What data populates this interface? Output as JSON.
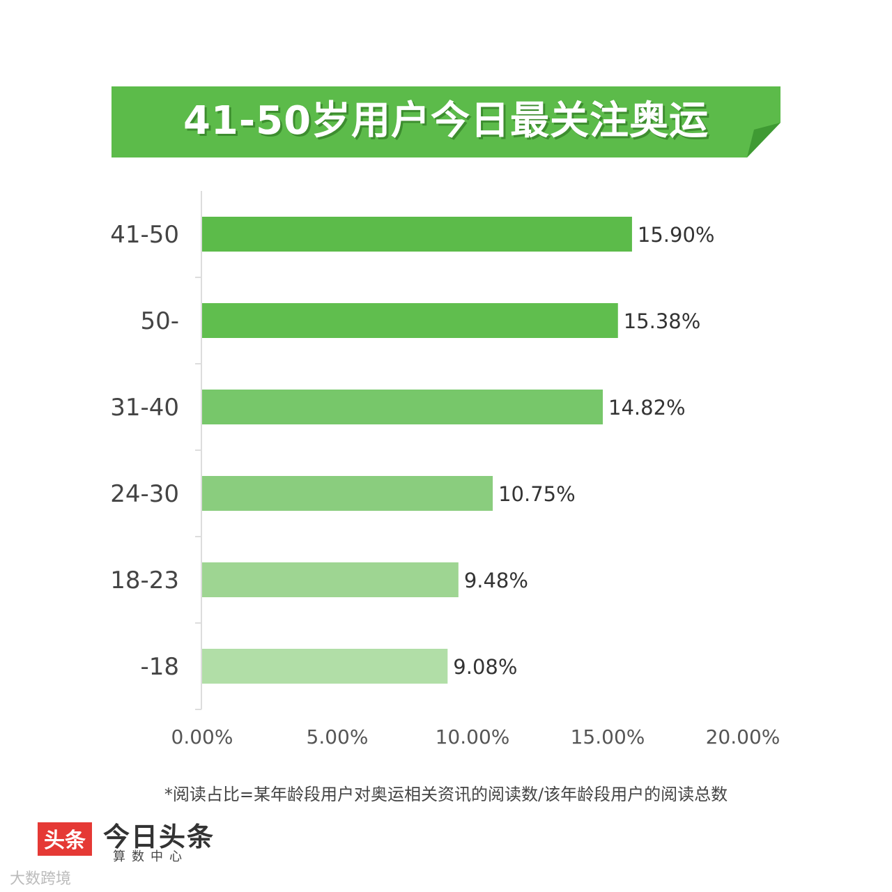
{
  "title": "41-50岁用户今日最关注奥运",
  "colors": {
    "banner": "#5cbb4a",
    "banner_fold": "#3f9a33",
    "bars": [
      "#5cbb4a",
      "#60be4e",
      "#77c76a",
      "#8acd7e",
      "#9ed592",
      "#b1dea7"
    ],
    "brand_red": "#e53935"
  },
  "chart_data": {
    "type": "bar",
    "orientation": "horizontal",
    "categories": [
      "41-50",
      "50-",
      "31-40",
      "24-30",
      "18-23",
      "-18"
    ],
    "values": [
      15.9,
      15.38,
      14.82,
      10.75,
      9.48,
      9.08
    ],
    "value_labels": [
      "15.90%",
      "15.38%",
      "14.82%",
      "10.75%",
      "9.48%",
      "9.08%"
    ],
    "xlim": [
      0,
      20
    ],
    "xticks": [
      0,
      5,
      10,
      15,
      20
    ],
    "xtick_labels": [
      "0.00%",
      "5.00%",
      "10.00%",
      "15.00%",
      "20.00%"
    ],
    "grid": false
  },
  "footnote": "*阅读占比=某年龄段用户对奥运相关资讯的阅读数/该年龄段用户的阅读总数",
  "brand": {
    "logo_text": "头条",
    "name": "今日头条",
    "subtitle": "算数中心"
  },
  "watermark": "大数跨境"
}
